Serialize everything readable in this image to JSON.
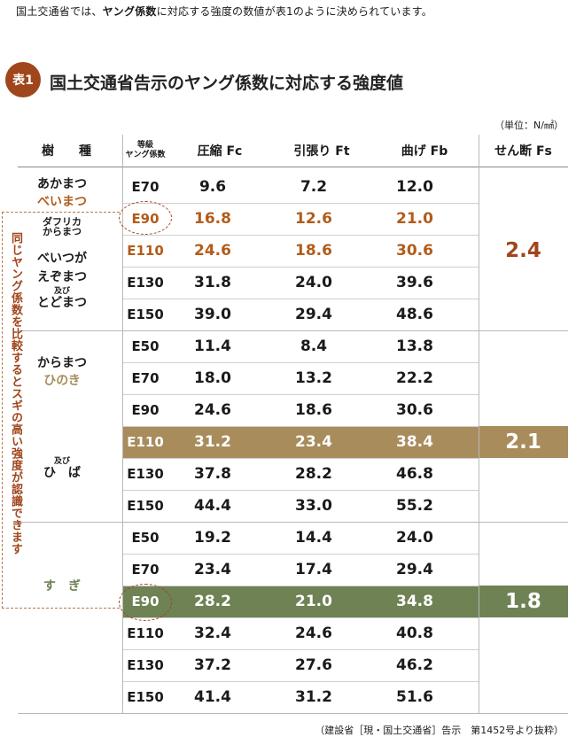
{
  "intro": {
    "pre": "国土交通省では、",
    "bold": "ヤング係数",
    "post": "に対応する強度の数値が表1のように決められています。"
  },
  "table_badge": "表1",
  "table_title": "国土交通省告示のヤング係数に対応する強度値",
  "unit": "（単位：N/㎟）",
  "source": "（建設省［現・国土交通省］告示　第1452号より抜粋）",
  "side_note": "同じヤング係数を比較するとスギの高い強度が認識できます",
  "headers": {
    "species": "樹　　種",
    "grade_line1": "等級",
    "grade_line2": "ヤング係数",
    "fc": "圧縮 Fc",
    "ft": "引張り Ft",
    "fb": "曲げ Fb",
    "fs": "せん断 Fs"
  },
  "species_labels": {
    "akamatsu": "あかまつ",
    "beimatsu": "べいまつ",
    "dahurica_l1": "ダフリカ",
    "dahurica_l2": "からまつ",
    "beitsuga": "べいつが",
    "ezomatsu": "えぞまつ",
    "oyobi1": "及び",
    "todomatsu": "とどまつ",
    "karamatsu": "からまつ",
    "hinoki": "ひのき",
    "oyobi2": "及び",
    "hiba": "ひ　ば",
    "sugi": "す　ぎ"
  },
  "colors": {
    "brown": "#a0461c",
    "tan": "#a88c5c",
    "green": "#6e8254",
    "orange_text": "#b25c1a"
  },
  "rows": [
    {
      "grade": "E70",
      "fc": "9.6",
      "ft": "7.2",
      "fb": "12.0"
    },
    {
      "grade": "E90",
      "fc": "16.8",
      "ft": "12.6",
      "fb": "21.0"
    },
    {
      "grade": "E110",
      "fc": "24.6",
      "ft": "18.6",
      "fb": "30.6"
    },
    {
      "grade": "E130",
      "fc": "31.8",
      "ft": "24.0",
      "fb": "39.6"
    },
    {
      "grade": "E150",
      "fc": "39.0",
      "ft": "29.4",
      "fb": "48.6"
    },
    {
      "grade": "E50",
      "fc": "11.4",
      "ft": "8.4",
      "fb": "13.8"
    },
    {
      "grade": "E70",
      "fc": "18.0",
      "ft": "13.2",
      "fb": "22.2"
    },
    {
      "grade": "E90",
      "fc": "24.6",
      "ft": "18.6",
      "fb": "30.6"
    },
    {
      "grade": "E110",
      "fc": "31.2",
      "ft": "23.4",
      "fb": "38.4"
    },
    {
      "grade": "E130",
      "fc": "37.8",
      "ft": "28.2",
      "fb": "46.8"
    },
    {
      "grade": "E150",
      "fc": "44.4",
      "ft": "33.0",
      "fb": "55.2"
    },
    {
      "grade": "E50",
      "fc": "19.2",
      "ft": "14.4",
      "fb": "24.0"
    },
    {
      "grade": "E70",
      "fc": "23.4",
      "ft": "17.4",
      "fb": "29.4"
    },
    {
      "grade": "E90",
      "fc": "28.2",
      "ft": "21.0",
      "fb": "34.8"
    },
    {
      "grade": "E110",
      "fc": "32.4",
      "ft": "24.6",
      "fb": "40.8"
    },
    {
      "grade": "E130",
      "fc": "37.2",
      "ft": "27.6",
      "fb": "46.2"
    },
    {
      "grade": "E150",
      "fc": "41.4",
      "ft": "31.2",
      "fb": "51.6"
    }
  ],
  "shear": [
    "2.4",
    "2.1",
    "1.8"
  ]
}
